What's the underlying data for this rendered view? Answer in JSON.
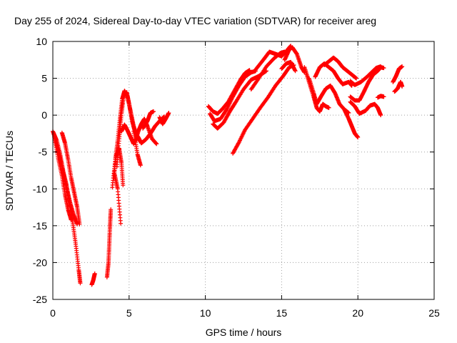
{
  "chart_data": {
    "type": "scatter",
    "title": "Day 255 of 2024, Sidereal Day-to-day VTEC variation (SDTVAR) for receiver areg",
    "xlabel": "GPS time / hours",
    "ylabel": "SDTVAR / TECUs",
    "xlim": [
      0,
      25
    ],
    "ylim": [
      -25,
      10
    ],
    "xticks": [
      0,
      5,
      10,
      15,
      20,
      25
    ],
    "yticks": [
      -25,
      -20,
      -15,
      -10,
      -5,
      0,
      5,
      10
    ],
    "xtick_labels": [
      "0",
      "5",
      "10",
      "15",
      "20",
      "25"
    ],
    "ytick_labels": [
      "-25",
      "-20",
      "-15",
      "-10",
      "-5",
      "0",
      "5",
      "10"
    ],
    "grid": true,
    "marker": "plus",
    "series": [
      {
        "name": "SDTVAR",
        "color": "#ff0000",
        "segments": [
          [
            [
              0.0,
              -2.2
            ],
            [
              0.25,
              -3.4
            ],
            [
              0.5,
              -5.5
            ],
            [
              0.7,
              -7.8
            ],
            [
              0.9,
              -9.5
            ],
            [
              1.1,
              -12.0
            ],
            [
              1.3,
              -14.5
            ],
            [
              1.5,
              -17.5
            ],
            [
              1.7,
              -21.0
            ],
            [
              1.8,
              -22.8
            ]
          ],
          [
            [
              0.05,
              -2.5
            ],
            [
              0.3,
              -4.4
            ],
            [
              0.55,
              -6.5
            ],
            [
              0.75,
              -8.5
            ],
            [
              0.95,
              -10.3
            ],
            [
              1.15,
              -12.0
            ],
            [
              1.35,
              -13.5
            ],
            [
              1.6,
              -14.8
            ]
          ],
          [
            [
              0.1,
              -3.0
            ],
            [
              0.35,
              -5.8
            ],
            [
              0.6,
              -8.2
            ],
            [
              0.8,
              -10.8
            ],
            [
              1.0,
              -12.8
            ],
            [
              1.2,
              -14.2
            ]
          ],
          [
            [
              0.6,
              -2.4
            ],
            [
              0.8,
              -3.8
            ],
            [
              1.0,
              -6.0
            ],
            [
              1.2,
              -8.5
            ],
            [
              1.4,
              -10.5
            ],
            [
              1.6,
              -12.5
            ],
            [
              1.75,
              -14.8
            ]
          ],
          [
            [
              2.55,
              -23.0
            ],
            [
              2.65,
              -22.4
            ],
            [
              2.75,
              -21.5
            ]
          ],
          [
            [
              3.55,
              -22.0
            ],
            [
              3.65,
              -20.0
            ],
            [
              3.7,
              -17.5
            ],
            [
              3.75,
              -15.0
            ],
            [
              3.8,
              -12.8
            ]
          ],
          [
            [
              3.9,
              -9.8
            ],
            [
              4.1,
              -6.0
            ],
            [
              4.25,
              -3.5
            ],
            [
              4.4,
              -0.5
            ],
            [
              4.55,
              2.2
            ],
            [
              4.7,
              3.3
            ],
            [
              4.9,
              2.5
            ],
            [
              5.1,
              0.5
            ],
            [
              5.3,
              -1.5
            ],
            [
              5.6,
              -3.3
            ]
          ],
          [
            [
              4.0,
              -8.5
            ],
            [
              4.15,
              -5.5
            ],
            [
              4.35,
              -4.5
            ],
            [
              4.5,
              -6.5
            ],
            [
              4.6,
              -9.5
            ]
          ],
          [
            [
              4.05,
              -8.0
            ],
            [
              4.25,
              -10.0
            ],
            [
              4.45,
              -14.7
            ]
          ],
          [
            [
              4.2,
              -7.0
            ],
            [
              4.35,
              -3.2
            ],
            [
              4.5,
              0.2
            ],
            [
              4.65,
              2.6
            ],
            [
              4.85,
              3.1
            ],
            [
              5.0,
              1.5
            ],
            [
              5.2,
              -0.8
            ],
            [
              5.4,
              -2.4
            ],
            [
              5.6,
              -3.0
            ],
            [
              5.8,
              -3.8
            ],
            [
              6.1,
              -3.3
            ],
            [
              6.4,
              -2.5
            ],
            [
              6.7,
              -1.5
            ],
            [
              7.0,
              -0.8
            ],
            [
              7.3,
              -0.2
            ]
          ],
          [
            [
              4.5,
              -2.2
            ],
            [
              4.7,
              -1.3
            ],
            [
              4.9,
              -2.1
            ],
            [
              5.1,
              -3.0
            ],
            [
              5.3,
              -3.9
            ]
          ],
          [
            [
              5.4,
              -3.6
            ],
            [
              5.6,
              -2.2
            ],
            [
              5.8,
              -1.2
            ],
            [
              6.0,
              -0.5
            ],
            [
              6.2,
              -1.5
            ],
            [
              6.5,
              -3.2
            ],
            [
              6.8,
              -3.9
            ]
          ],
          [
            [
              5.3,
              -2.2
            ],
            [
              5.55,
              -5.3
            ],
            [
              5.75,
              -6.8
            ]
          ],
          [
            [
              5.9,
              -1.8
            ],
            [
              6.2,
              -0.8
            ],
            [
              6.4,
              0.3
            ],
            [
              6.6,
              0.5
            ]
          ],
          [
            [
              7.0,
              -0.3
            ],
            [
              7.2,
              -1.2
            ],
            [
              7.4,
              -0.5
            ],
            [
              7.6,
              0.3
            ]
          ],
          [
            [
              10.2,
              1.2
            ],
            [
              10.5,
              0.5
            ],
            [
              10.8,
              0.2
            ],
            [
              11.1,
              0.8
            ],
            [
              11.5,
              1.8
            ],
            [
              11.9,
              3.3
            ],
            [
              12.3,
              4.8
            ],
            [
              12.6,
              5.7
            ],
            [
              12.9,
              6.1
            ]
          ],
          [
            [
              10.3,
              0.2
            ],
            [
              10.6,
              -0.8
            ],
            [
              11.0,
              -0.5
            ],
            [
              11.4,
              0.8
            ],
            [
              11.8,
              2.5
            ],
            [
              12.2,
              4.0
            ],
            [
              12.6,
              5.2
            ],
            [
              13.0,
              5.8
            ],
            [
              13.3,
              6.0
            ]
          ],
          [
            [
              10.5,
              -1.2
            ],
            [
              10.8,
              -1.8
            ],
            [
              11.2,
              -1.0
            ],
            [
              11.6,
              0.5
            ],
            [
              12.0,
              1.8
            ],
            [
              12.5,
              3.5
            ],
            [
              13.0,
              4.8
            ],
            [
              13.5,
              5.3
            ],
            [
              14.0,
              6.0
            ]
          ],
          [
            [
              11.8,
              -5.2
            ],
            [
              12.2,
              -3.7
            ],
            [
              12.6,
              -2.0
            ],
            [
              13.1,
              -0.5
            ],
            [
              13.6,
              1.0
            ],
            [
              14.1,
              2.4
            ],
            [
              14.6,
              4.0
            ],
            [
              15.1,
              5.3
            ],
            [
              15.5,
              6.5
            ],
            [
              15.8,
              6.8
            ]
          ],
          [
            [
              13.0,
              3.5
            ],
            [
              13.5,
              5.0
            ],
            [
              14.0,
              6.6
            ],
            [
              14.5,
              7.7
            ],
            [
              14.9,
              8.4
            ],
            [
              15.2,
              8.6
            ]
          ],
          [
            [
              13.3,
              6.2
            ],
            [
              13.8,
              7.5
            ],
            [
              14.2,
              8.6
            ],
            [
              14.6,
              8.3
            ],
            [
              15.0,
              8.0
            ],
            [
              15.4,
              8.9
            ],
            [
              15.6,
              9.4
            ]
          ],
          [
            [
              15.2,
              7.5
            ],
            [
              15.5,
              8.9
            ],
            [
              15.7,
              9.2
            ],
            [
              16.0,
              8.3
            ],
            [
              16.3,
              6.5
            ],
            [
              16.5,
              5.8
            ]
          ],
          [
            [
              15.0,
              6.3
            ],
            [
              15.3,
              7.0
            ],
            [
              15.6,
              7.2
            ],
            [
              15.9,
              6.0
            ]
          ],
          [
            [
              16.5,
              6.5
            ],
            [
              16.8,
              4.5
            ],
            [
              17.1,
              2.5
            ],
            [
              17.3,
              1.0
            ],
            [
              17.5,
              0.5
            ],
            [
              17.7,
              1.5
            ],
            [
              17.9,
              1.2
            ],
            [
              18.1,
              1.0
            ]
          ],
          [
            [
              16.8,
              5.0
            ],
            [
              17.1,
              3.0
            ],
            [
              17.3,
              1.5
            ],
            [
              17.6,
              2.6
            ],
            [
              17.9,
              3.6
            ],
            [
              18.2,
              4.0
            ],
            [
              18.5,
              3.0
            ],
            [
              18.8,
              1.5
            ],
            [
              19.1,
              0.8
            ],
            [
              19.4,
              0.3
            ]
          ],
          [
            [
              17.2,
              5.2
            ],
            [
              17.5,
              6.5
            ],
            [
              17.8,
              7.0
            ],
            [
              18.1,
              6.5
            ],
            [
              18.4,
              6.0
            ],
            [
              18.7,
              5.0
            ],
            [
              19.0,
              4.2
            ],
            [
              19.4,
              4.5
            ],
            [
              19.6,
              4.0
            ]
          ],
          [
            [
              17.8,
              6.8
            ],
            [
              18.1,
              7.3
            ],
            [
              18.4,
              7.8
            ],
            [
              18.7,
              7.3
            ],
            [
              19.0,
              6.5
            ],
            [
              19.3,
              6.0
            ],
            [
              19.6,
              5.5
            ],
            [
              19.9,
              5.0
            ]
          ],
          [
            [
              19.1,
              0.8
            ],
            [
              19.4,
              -0.5
            ],
            [
              19.6,
              -1.5
            ],
            [
              19.8,
              -2.5
            ],
            [
              20.0,
              -3.0
            ]
          ],
          [
            [
              19.5,
              1.8
            ],
            [
              19.8,
              1.2
            ],
            [
              20.1,
              0.2
            ],
            [
              20.5,
              0.6
            ],
            [
              20.8,
              1.3
            ],
            [
              21.1,
              1.5
            ],
            [
              21.3,
              1.0
            ],
            [
              21.5,
              0.0
            ]
          ],
          [
            [
              19.5,
              2.5
            ],
            [
              19.8,
              2.0
            ],
            [
              20.1,
              2.0
            ],
            [
              20.4,
              3.2
            ],
            [
              20.7,
              4.5
            ],
            [
              21.0,
              5.5
            ],
            [
              21.3,
              6.0
            ],
            [
              21.5,
              6.5
            ],
            [
              21.7,
              6.4
            ]
          ],
          [
            [
              19.5,
              4.6
            ],
            [
              19.8,
              4.1
            ],
            [
              20.2,
              4.5
            ],
            [
              20.6,
              5.2
            ],
            [
              20.9,
              5.8
            ],
            [
              21.2,
              6.4
            ],
            [
              21.5,
              6.6
            ]
          ],
          [
            [
              21.3,
              2.4
            ],
            [
              21.5,
              2.6
            ],
            [
              21.7,
              2.5
            ]
          ],
          [
            [
              22.3,
              4.5
            ],
            [
              22.5,
              5.3
            ],
            [
              22.7,
              6.3
            ],
            [
              22.9,
              6.6
            ]
          ],
          [
            [
              22.4,
              3.2
            ],
            [
              22.6,
              3.6
            ],
            [
              22.8,
              4.5
            ],
            [
              22.9,
              3.9
            ]
          ]
        ]
      }
    ]
  }
}
